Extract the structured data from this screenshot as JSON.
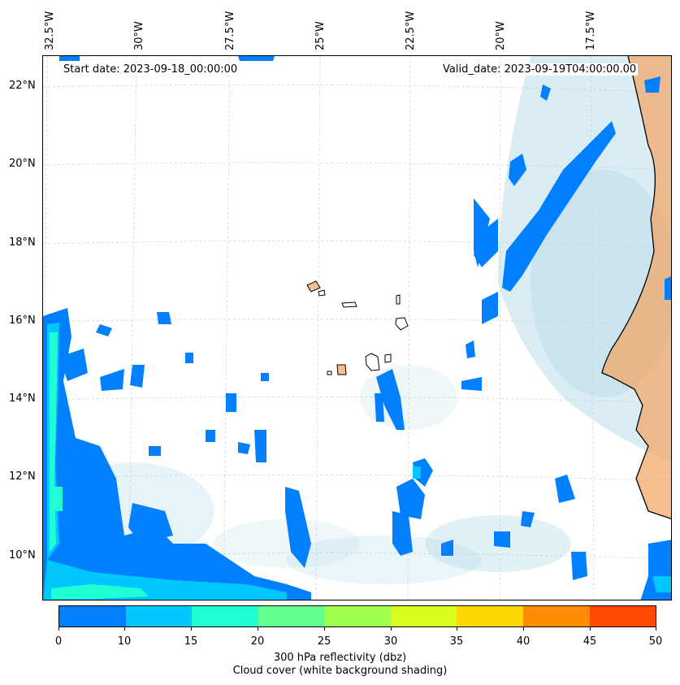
{
  "header": {
    "start_date": "Start date: 2023-09-18_00:00:00",
    "valid_date": "Valid_date: 2023-09-19T04:00:00.00"
  },
  "axes": {
    "longitude_labels": [
      "32.5°W",
      "30°W",
      "27.5°W",
      "25°W",
      "22.5°W",
      "20°W",
      "17.5°W"
    ],
    "latitude_labels": [
      "22°N",
      "20°N",
      "18°N",
      "16°N",
      "14°N",
      "12°N",
      "10°N"
    ]
  },
  "colorbar": {
    "ticks": [
      "0",
      "10",
      "15",
      "20",
      "25",
      "30",
      "35",
      "40",
      "45",
      "50"
    ],
    "colors": [
      "#0080ff",
      "#00c8ff",
      "#20ffd4",
      "#60ff90",
      "#a0ff50",
      "#d8ff20",
      "#ffd800",
      "#ff8c00",
      "#ff4800"
    ],
    "label_line1": "300 hPa reflectivity (dbz)",
    "label_line2": "Cloud cover (white background shading)"
  },
  "map": {
    "ocean_color": "#ffffff",
    "cloud_shade_color": "#add8e6",
    "land_warm_color": "#f4a460",
    "gridline_color": "#cccccc"
  }
}
